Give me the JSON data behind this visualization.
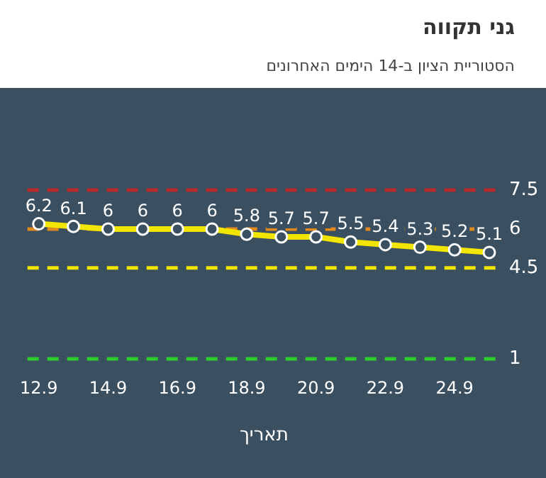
{
  "chart_data": {
    "type": "line",
    "title": "גני תקווה",
    "subtitle": "הסטוריית הציון ב-14 הימים האחרונים",
    "xlabel": "תאריך",
    "categories": [
      "12.9",
      null,
      "14.9",
      null,
      "16.9",
      null,
      "18.9",
      null,
      "20.9",
      null,
      "22.9",
      null,
      "24.9",
      null
    ],
    "series": [
      {
        "color": "#f2e600",
        "values": [
          6.2,
          6.1,
          6,
          6,
          6,
          6,
          5.8,
          5.7,
          5.7,
          5.5,
          5.4,
          5.3,
          5.2,
          5.1
        ]
      }
    ],
    "tick_labels": "x",
    "grid": false,
    "legend": false,
    "marker": "circle",
    "line_style": "solid",
    "data_labels": true,
    "ref_lines": [
      {
        "axis": "y",
        "value": 7.5,
        "label": "7.5",
        "color": "#b82a2a",
        "line_style": "dashed"
      },
      {
        "axis": "y",
        "value": 6,
        "label": "6",
        "color": "#e08a1e",
        "line_style": "dashed"
      },
      {
        "axis": "y",
        "value": 4.5,
        "label": "4.5",
        "color": "#f2e600",
        "line_style": "dashed"
      },
      {
        "axis": "y",
        "value": 1,
        "label": "1",
        "color": "#2ecc2e",
        "line_style": "dashed"
      }
    ]
  }
}
